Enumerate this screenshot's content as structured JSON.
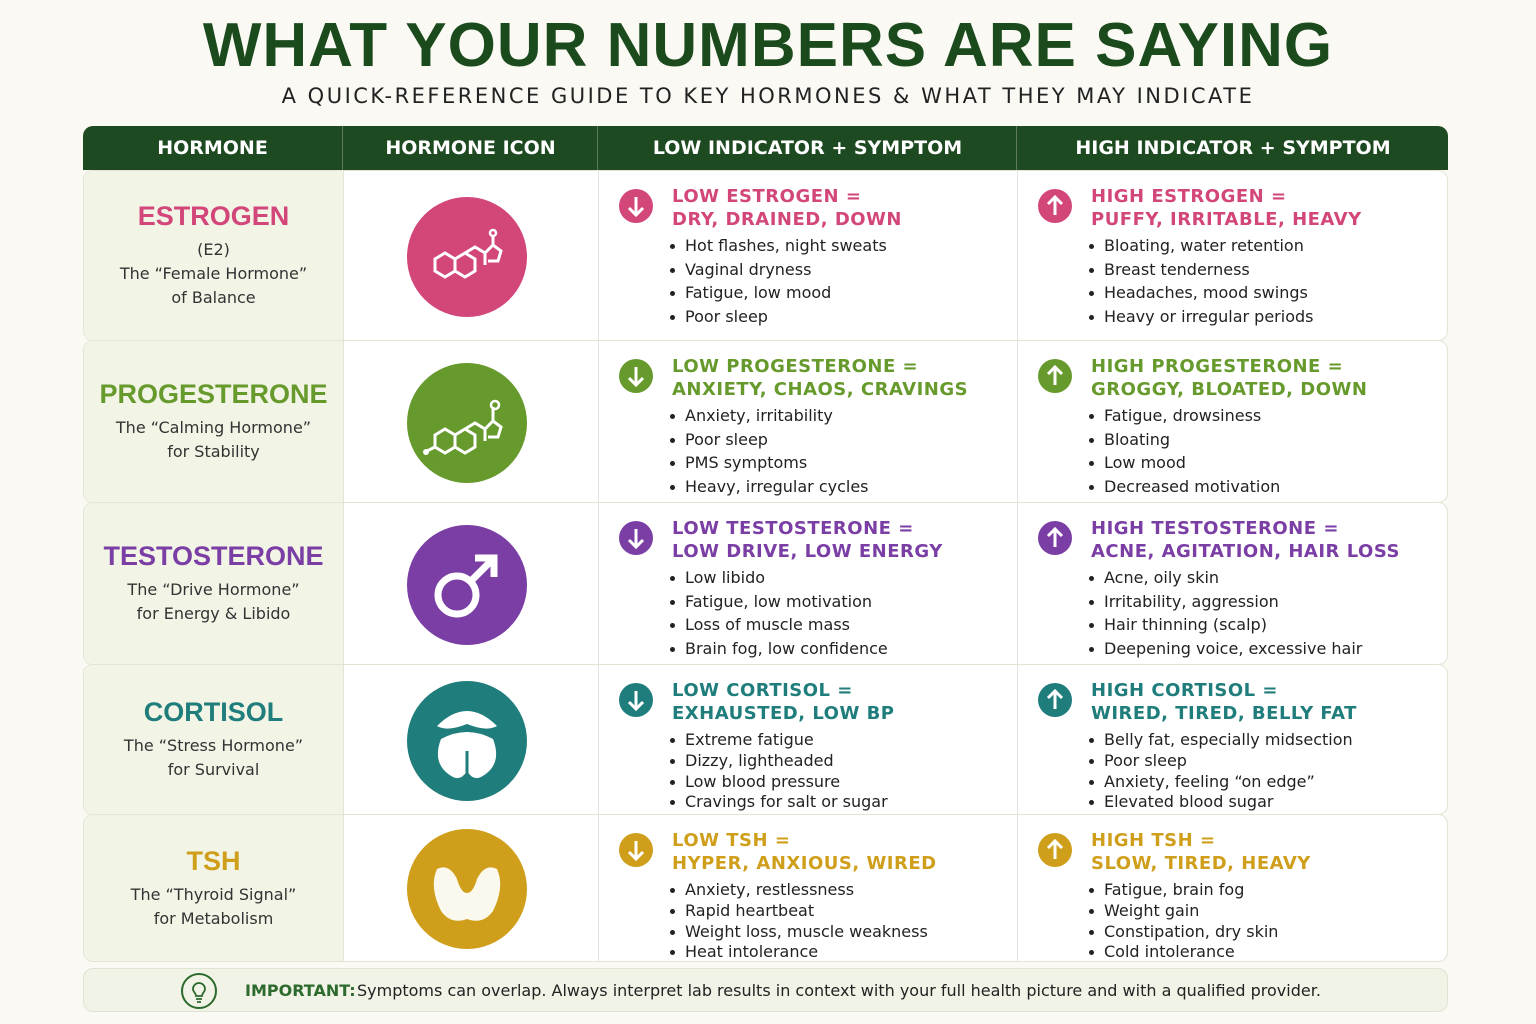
{
  "header": {
    "title": "WHAT YOUR NUMBERS ARE SAYING",
    "subtitle": "A QUICK-REFERENCE GUIDE TO KEY HORMONES & WHAT THEY MAY INDICATE"
  },
  "table": {
    "columns": [
      "HORMONE",
      "HORMONE ICON",
      "LOW INDICATOR + SYMPTOM",
      "HIGH INDICATOR + SYMPTOM"
    ],
    "rows": [
      {
        "name": "ESTROGEN",
        "abbr": "(E2)",
        "description": [
          "The “Female Hormone”",
          "of Balance"
        ],
        "low": {
          "heading": [
            "LOW ESTROGEN =",
            "DRY, DRAINED, DOWN"
          ],
          "symptoms": [
            "Hot flashes, night sweats",
            "Vaginal dryness",
            "Fatigue, low mood",
            "Poor sleep"
          ]
        },
        "high": {
          "heading": [
            "HIGH ESTROGEN =",
            "PUFFY, IRRITABLE, HEAVY"
          ],
          "symptoms": [
            "Bloating, water retention",
            "Breast tenderness",
            "Headaches, mood swings",
            "Heavy or irregular periods"
          ]
        }
      },
      {
        "name": "PROGESTERONE",
        "description": [
          "The “Calming Hormone”",
          "for Stability"
        ],
        "low": {
          "heading": [
            "LOW PROGESTERONE =",
            "ANXIETY, CHAOS, CRAVINGS"
          ],
          "symptoms": [
            "Anxiety, irritability",
            "Poor sleep",
            "PMS symptoms",
            "Heavy, irregular cycles"
          ]
        },
        "high": {
          "heading": [
            "HIGH PROGESTERONE =",
            "GROGGY, BLOATED, DOWN"
          ],
          "symptoms": [
            "Fatigue, drowsiness",
            "Bloating",
            "Low mood",
            "Decreased motivation"
          ]
        }
      },
      {
        "name": "TESTOSTERONE",
        "description": [
          "The “Drive Hormone”",
          "for Energy & Libido"
        ],
        "low": {
          "heading": [
            "LOW TESTOSTERONE =",
            "LOW DRIVE, LOW ENERGY"
          ],
          "symptoms": [
            "Low libido",
            "Fatigue, low motivation",
            "Loss of muscle mass",
            "Brain fog, low confidence"
          ]
        },
        "high": {
          "heading": [
            "HIGH TESTOSTERONE =",
            "ACNE, AGITATION, HAIR LOSS"
          ],
          "symptoms": [
            "Acne, oily skin",
            "Irritability, aggression",
            "Hair thinning (scalp)",
            "Deepening voice, excessive hair"
          ]
        }
      },
      {
        "name": "CORTISOL",
        "description": [
          "The “Stress Hormone”",
          "for Survival"
        ],
        "low": {
          "heading": [
            "LOW CORTISOL =",
            "EXHAUSTED, LOW BP"
          ],
          "symptoms": [
            "Extreme fatigue",
            "Dizzy, lightheaded",
            "Low blood pressure",
            "Cravings for salt or sugar"
          ]
        },
        "high": {
          "heading": [
            "HIGH CORTISOL =",
            "WIRED, TIRED, BELLY FAT"
          ],
          "symptoms": [
            "Belly fat, especially midsection",
            "Poor sleep",
            "Anxiety, feeling “on edge”",
            "Elevated blood sugar"
          ]
        }
      },
      {
        "name": "TSH",
        "description": [
          "The “Thyroid Signal”",
          "for Metabolism"
        ],
        "low": {
          "heading": [
            "LOW TSH =",
            "HYPER, ANXIOUS, WIRED"
          ],
          "symptoms": [
            "Anxiety, restlessness",
            "Rapid heartbeat",
            "Weight loss, muscle weakness",
            "Heat intolerance"
          ]
        },
        "high": {
          "heading": [
            "HIGH TSH =",
            "SLOW, TIRED, HEAVY"
          ],
          "symptoms": [
            "Fatigue, brain fog",
            "Weight gain",
            "Constipation, dry skin",
            "Cold intolerance"
          ]
        }
      }
    ]
  },
  "footer": {
    "label": "IMPORTANT:",
    "text": "Symptoms can overlap. Always interpret lab results in context with your full health picture and with a qualified provider."
  }
}
